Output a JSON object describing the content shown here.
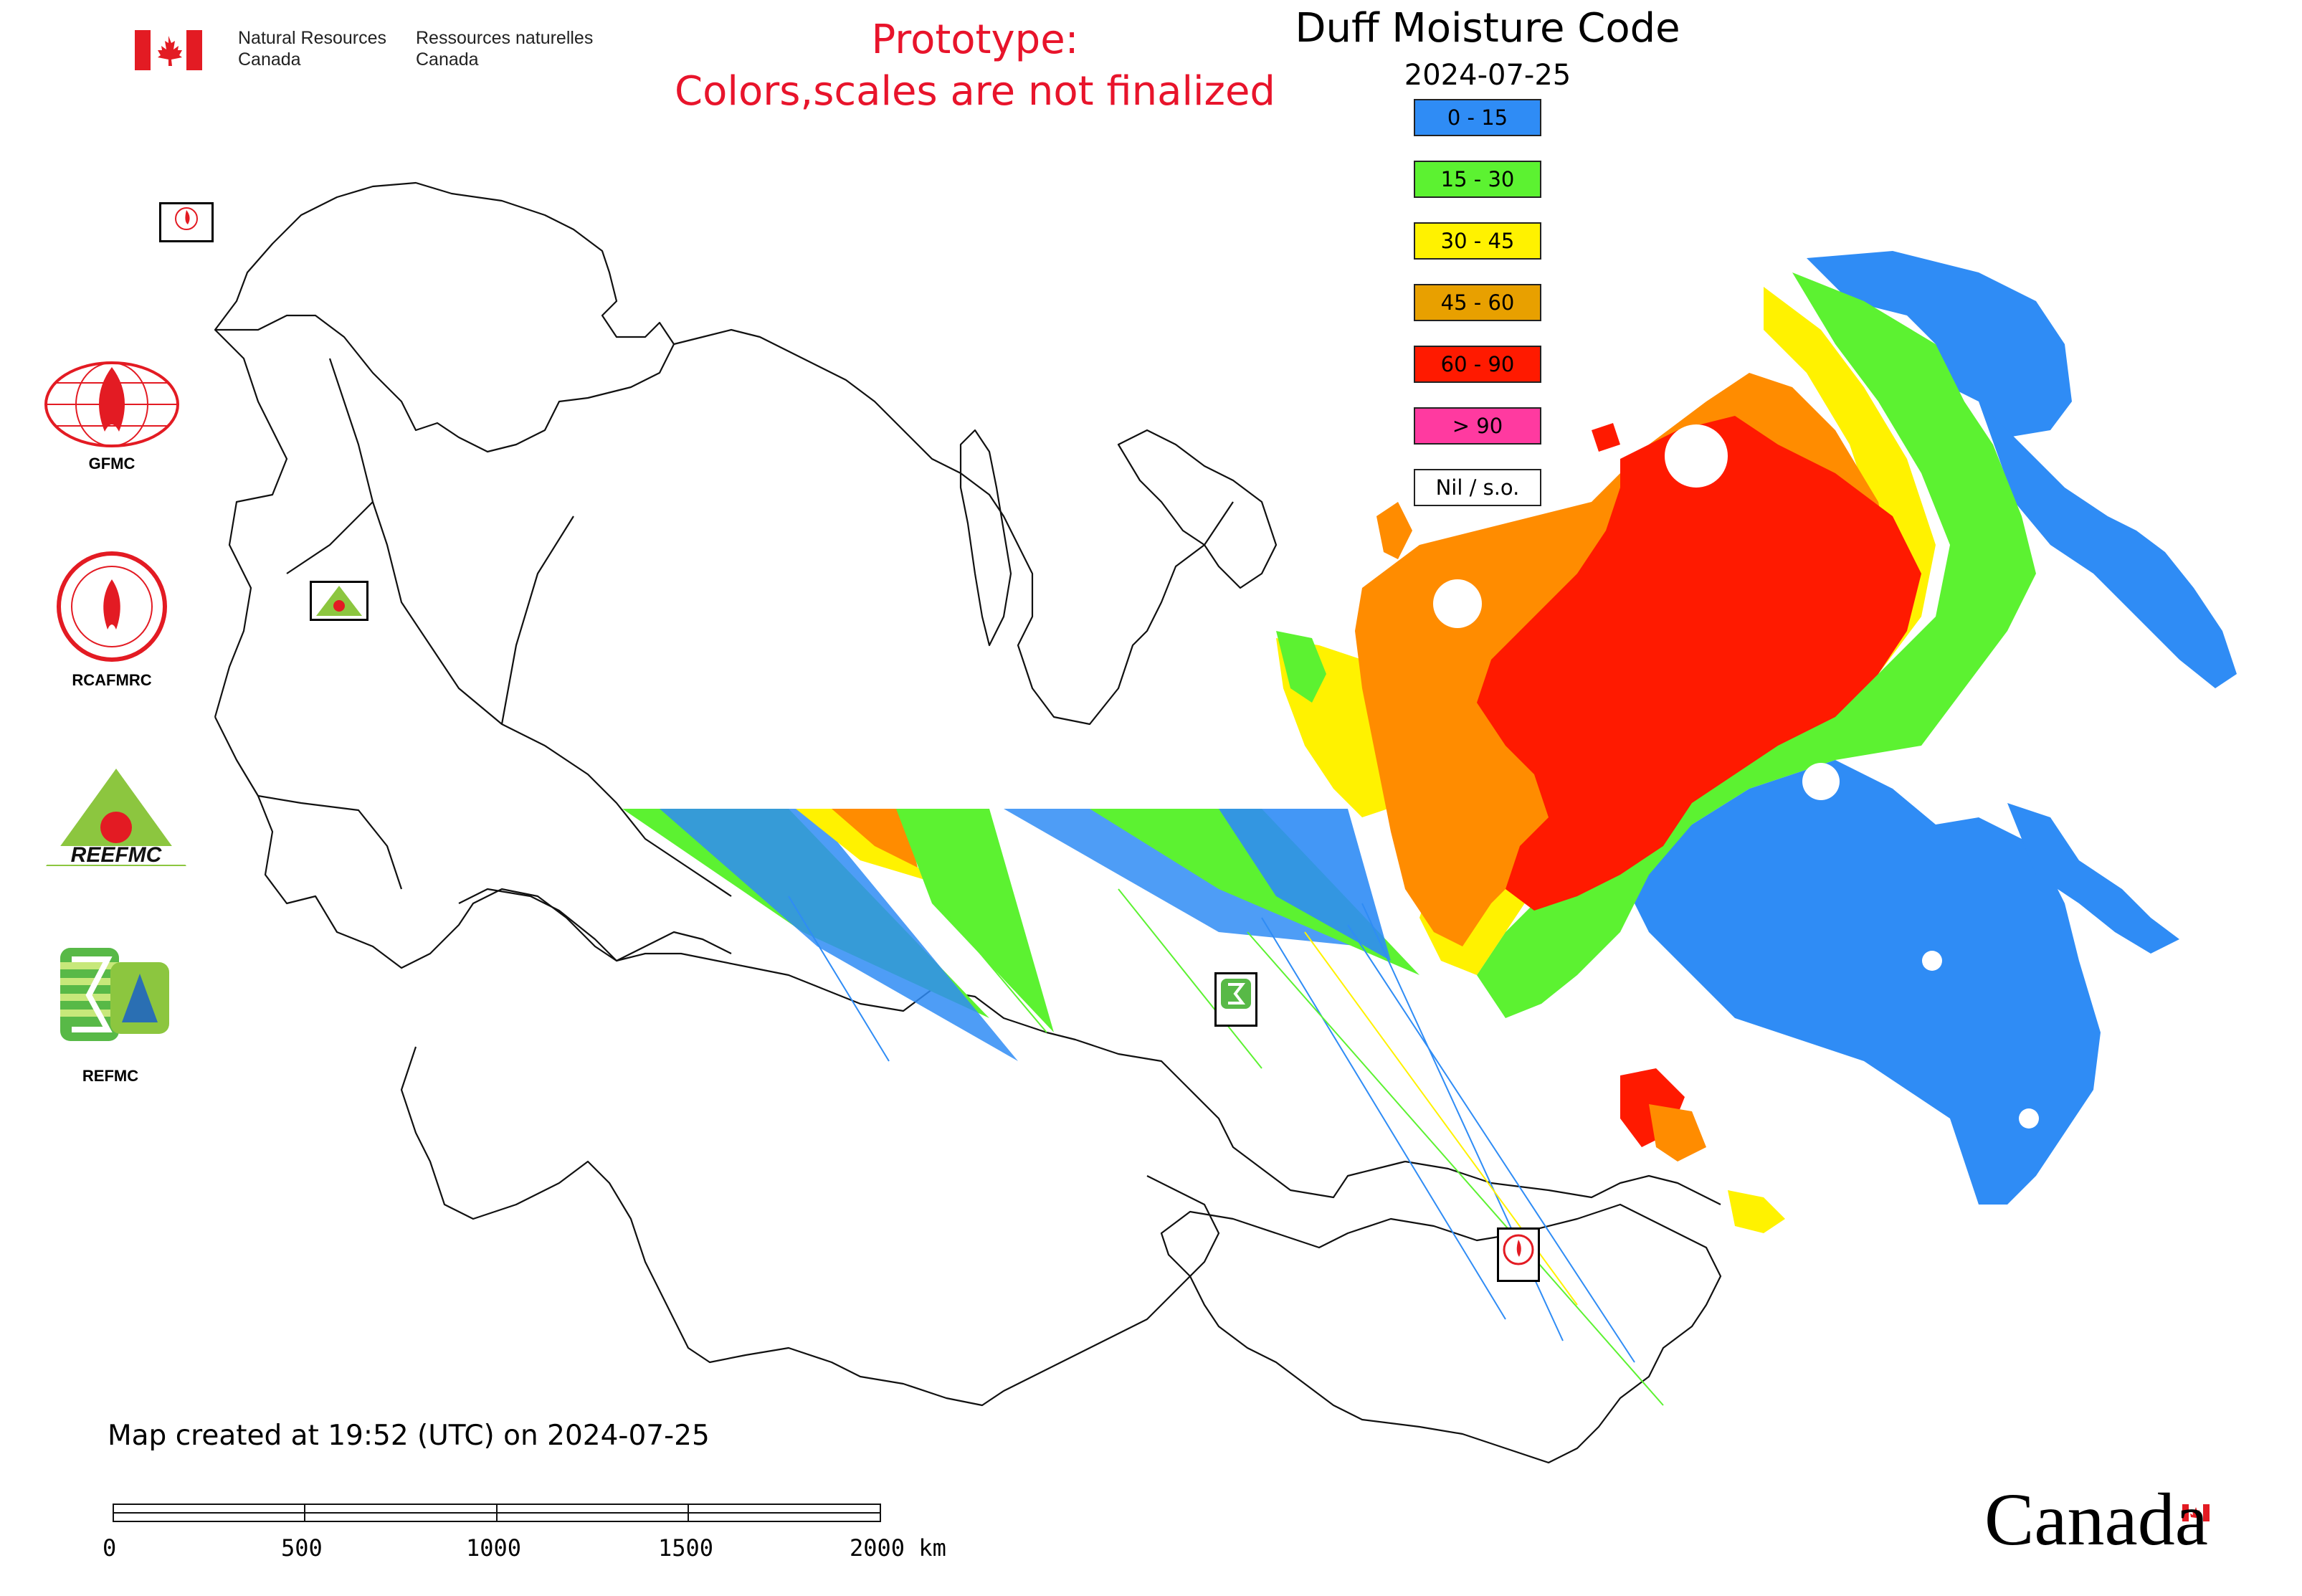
{
  "header": {
    "nrcan_en_line1": "Natural Resources",
    "nrcan_en_line2": "Canada",
    "nrcan_fr_line1": "Ressources naturelles",
    "nrcan_fr_line2": "Canada",
    "flag_color": "#e31b23"
  },
  "notice": {
    "line1": "Prototype:",
    "line2": "Colors,scales are not finalized",
    "color": "#e8142b"
  },
  "map": {
    "title": "Duff Moisture Code",
    "date": "2024-07-25",
    "created_text": "Map created at 19:52 (UTC) on 2024-07-25"
  },
  "legend": [
    {
      "label": "0 - 15",
      "color": "#2f8cf5"
    },
    {
      "label": "15 - 30",
      "color": "#5cf231"
    },
    {
      "label": "30 - 45",
      "color": "#fff200"
    },
    {
      "label": "45 - 60",
      "color": "#e8a000"
    },
    {
      "label": "60 - 90",
      "color": "#ff1a00"
    },
    {
      "label": "> 90",
      "color": "#ff3aa0"
    },
    {
      "label": "Nil / s.o.",
      "color": "#ffffff"
    }
  ],
  "palette": {
    "orange_field": "#ff8c00"
  },
  "side_logos": [
    {
      "label": "GFMC"
    },
    {
      "label": "RCAFMRC"
    },
    {
      "label": "REEFMC"
    },
    {
      "label": "REFMC"
    }
  ],
  "scale_bar": {
    "ticks": [
      "0",
      "500",
      "1000",
      "1500",
      "2000 km"
    ]
  },
  "footer": {
    "wordmark": "Canada"
  }
}
